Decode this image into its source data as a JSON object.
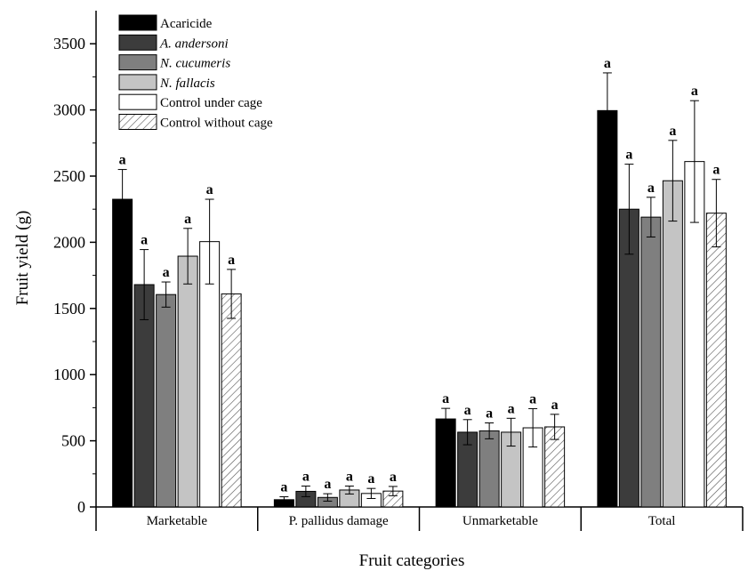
{
  "chart_data": {
    "type": "bar",
    "title": "",
    "xlabel": "Fruit categories",
    "ylabel": "Fruit yield (g)",
    "ylim": [
      0,
      3750
    ],
    "yticks": [
      0,
      500,
      1000,
      1500,
      2000,
      2500,
      3000,
      3500
    ],
    "categories": [
      "Marketable",
      "P. pallidus damage",
      "Unmarketable",
      "Total"
    ],
    "legend_position": "top-left",
    "series": [
      {
        "name": "Acaricide",
        "italic": false,
        "fill": "#000000",
        "hatch": false,
        "values": [
          2325,
          55,
          665,
          2995
        ],
        "errors": [
          225,
          22,
          80,
          285
        ],
        "sig": [
          "a",
          "a",
          "a",
          "a"
        ]
      },
      {
        "name": "A. andersoni",
        "italic": true,
        "fill": "#3c3c3c",
        "hatch": false,
        "values": [
          1680,
          118,
          565,
          2250
        ],
        "errors": [
          265,
          40,
          95,
          340
        ],
        "sig": [
          "a",
          "a",
          "a",
          "a"
        ]
      },
      {
        "name": "N. cucumeris",
        "italic": true,
        "fill": "#7f7f7f",
        "hatch": false,
        "values": [
          1605,
          72,
          575,
          2190
        ],
        "errors": [
          95,
          28,
          60,
          150
        ],
        "sig": [
          "a",
          "a",
          "a",
          "a"
        ]
      },
      {
        "name": "N. fallacis",
        "italic": true,
        "fill": "#c4c4c4",
        "hatch": false,
        "values": [
          1895,
          128,
          565,
          2465
        ],
        "errors": [
          210,
          30,
          105,
          305
        ],
        "sig": [
          "a",
          "a",
          "a",
          "a"
        ]
      },
      {
        "name": "Control under cage",
        "italic": false,
        "fill": "#ffffff",
        "hatch": false,
        "values": [
          2005,
          102,
          598,
          2610
        ],
        "errors": [
          320,
          38,
          145,
          460
        ],
        "sig": [
          "a",
          "a",
          "a",
          "a"
        ]
      },
      {
        "name": "Control without cage",
        "italic": false,
        "fill": "#ffffff",
        "hatch": true,
        "values": [
          1610,
          120,
          605,
          2220
        ],
        "errors": [
          185,
          35,
          95,
          255
        ],
        "sig": [
          "a",
          "a",
          "a",
          "a"
        ]
      }
    ]
  }
}
